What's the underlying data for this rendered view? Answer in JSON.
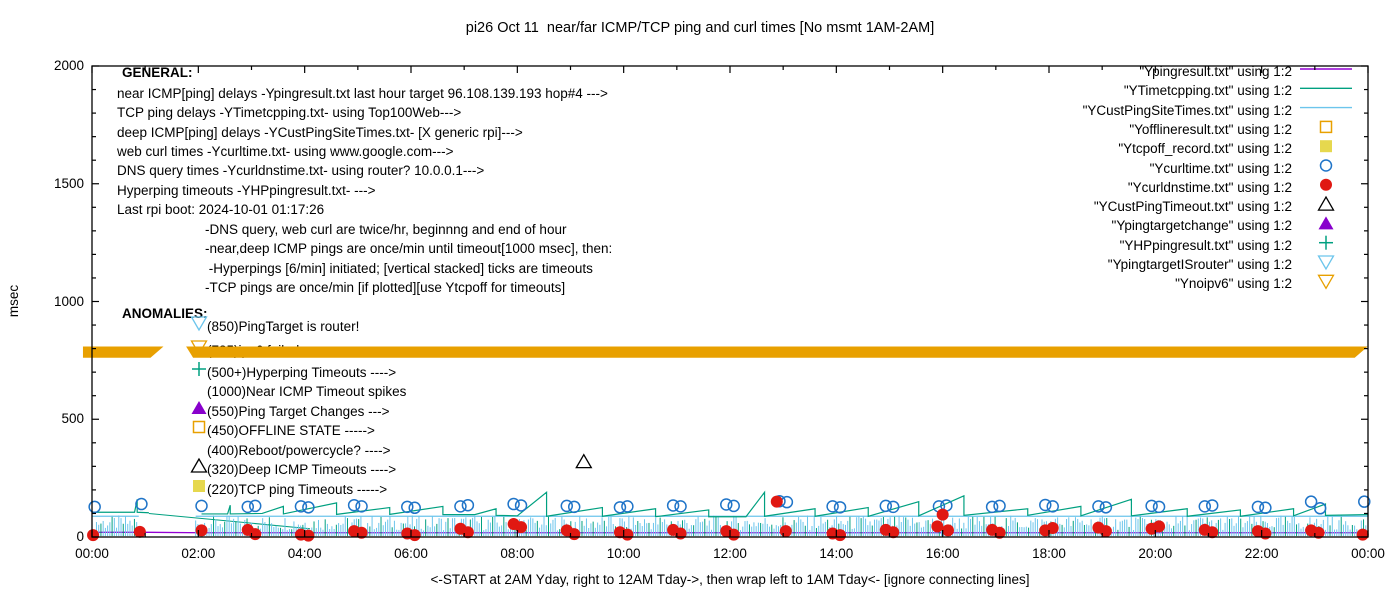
{
  "title": "pi26 Oct 11  near/far ICMP/TCP ping and curl times [No msmt 1AM-2AM]",
  "axes": {
    "ylabel": "msec",
    "xlabel": "<-START at 2AM Yday, right to 12AM Tday->, then wrap left to 1AM Tday<- [ignore connecting lines]",
    "yticks": [
      "0",
      "500",
      "1000",
      "1500",
      "2000"
    ],
    "xticks": [
      "00:00",
      "02:00",
      "04:00",
      "06:00",
      "08:00",
      "10:00",
      "12:00",
      "14:00",
      "16:00",
      "18:00",
      "20:00",
      "22:00",
      "00:00"
    ]
  },
  "general": {
    "heading": "GENERAL:",
    "lines": [
      "near ICMP[ping] delays -Ypingresult.txt last hour target 96.108.139.193 hop#4 --->",
      "TCP ping delays -YTimetcpping.txt- using Top100Web--->",
      "deep ICMP[ping] delays -YCustPingSiteTimes.txt- [X generic rpi]--->",
      "web curl times -Ycurltime.txt- using www.google.com--->",
      "DNS query times -Ycurldnstime.txt- using router? 10.0.0.1--->",
      "Hyperping timeouts -YHPpingresult.txt- --->",
      "Last rpi boot: 2024-10-01 01:17:26"
    ],
    "indented_lines": [
      "-DNS query, web curl are twice/hr, beginnng and end of hour",
      "-near,deep ICMP pings are once/min until timeout[1000 msec], then:",
      " -Hyperpings [6/min] initiated; [vertical stacked] ticks are timeouts",
      "-TCP pings are once/min [if plotted][use Ytcpoff for timeouts]"
    ]
  },
  "anomalies": {
    "heading": "ANOMALIES:",
    "rows": [
      {
        "marker": "triangle-down-open",
        "color": "#6cc5ec",
        "label": "(850)PingTarget is router!"
      },
      {
        "marker": "triangle-down-open",
        "color": "#e8a000",
        "label": "(785)ipv6 failed ->"
      },
      {
        "marker": "plus",
        "color": "#00a080",
        "label": "(500+)Hyperping Timeouts ---->"
      },
      {
        "marker": "none",
        "color": "",
        "label": "(1000)Near ICMP Timeout spikes"
      },
      {
        "marker": "triangle-up-filled",
        "color": "#8800cc",
        "label": "(550)Ping Target Changes --->"
      },
      {
        "marker": "square-open",
        "color": "#e8a000",
        "label": "(450)OFFLINE STATE ----->"
      },
      {
        "marker": "none",
        "color": "",
        "label": "(400)Reboot/powercycle? ---->"
      },
      {
        "marker": "triangle-up-open",
        "color": "#000000",
        "label": "(320)Deep ICMP Timeouts ---->"
      },
      {
        "marker": "square-filled",
        "color": "#e6d84e",
        "label": "(220)TCP ping Timeouts ----->"
      }
    ]
  },
  "legend": [
    {
      "label": "\"Ypingresult.txt\" using 1:2",
      "glyph": "line",
      "color": "#9400d3"
    },
    {
      "label": "\"YTimetcpping.txt\" using 1:2",
      "glyph": "line",
      "color": "#00a080"
    },
    {
      "label": "\"YCustPingSiteTimes.txt\" using 1:2",
      "glyph": "line",
      "color": "#6cc5ec"
    },
    {
      "label": "\"Yofflineresult.txt\" using 1:2",
      "glyph": "square-open",
      "color": "#e8a000"
    },
    {
      "label": "\"Ytcpoff_record.txt\" using 1:2",
      "glyph": "square-filled",
      "color": "#e6d84e"
    },
    {
      "label": "\"Ycurltime.txt\" using 1:2",
      "glyph": "circle-open",
      "color": "#1f74c8"
    },
    {
      "label": "\"Ycurldnstime.txt\" using 1:2",
      "glyph": "circle-filled",
      "color": "#e01812"
    },
    {
      "label": "\"YCustPingTimeout.txt\" using 1:2",
      "glyph": "triangle-up-open",
      "color": "#000000"
    },
    {
      "label": "\"Ypingtargetchange\" using 1:2",
      "glyph": "triangle-up-filled",
      "color": "#8800cc"
    },
    {
      "label": "\"YHPpingresult.txt\" using 1:2",
      "glyph": "plus",
      "color": "#00a080"
    },
    {
      "label": "\"YpingtargetISrouter\" using 1:2",
      "glyph": "triangle-down-open",
      "color": "#6cc5ec"
    },
    {
      "label": "\"Ynoipv6\" using 1:2",
      "glyph": "triangle-down-open",
      "color": "#e8a000"
    }
  ],
  "chart_data": {
    "type": "line",
    "x_unit": "hours (00:00-24:00)",
    "x_range": [
      0,
      24
    ],
    "y_range": [
      0,
      2000
    ],
    "ylabel": "msec",
    "gap_note": "No msmt 1AM-2AM",
    "series": [
      {
        "name": "Ypingresult.txt",
        "style": "line",
        "color": "#9400d3",
        "points": [
          [
            0,
            20
          ],
          [
            1.07,
            20
          ],
          [
            2.06,
            18
          ],
          [
            24,
            18
          ]
        ]
      },
      {
        "name": "YTimetcpping.txt",
        "style": "line",
        "color": "#00a080",
        "points": [
          [
            0,
            105
          ],
          [
            0.8,
            105
          ],
          [
            0.85,
            160
          ],
          [
            0.85,
            105
          ],
          [
            1.07,
            103
          ],
          [
            2.06,
            98
          ],
          [
            2.55,
            98
          ],
          [
            2.6,
            135
          ],
          [
            2.6,
            98
          ],
          [
            3.2,
            100
          ],
          [
            3.6,
            130
          ],
          [
            3.6,
            98
          ],
          [
            4.6,
            145
          ],
          [
            4.6,
            96
          ],
          [
            5.6,
            125
          ],
          [
            5.6,
            96
          ],
          [
            6.6,
            130
          ],
          [
            6.6,
            95
          ],
          [
            7.2,
            95
          ],
          [
            7.6,
            120
          ],
          [
            7.6,
            92
          ],
          [
            8.0,
            90
          ],
          [
            8.55,
            190
          ],
          [
            8.55,
            88
          ],
          [
            9.6,
            125
          ],
          [
            9.6,
            88
          ],
          [
            10.6,
            120
          ],
          [
            10.6,
            86
          ],
          [
            11.6,
            115
          ],
          [
            11.6,
            86
          ],
          [
            12.3,
            86
          ],
          [
            12.65,
            190
          ],
          [
            12.65,
            88
          ],
          [
            13.6,
            120
          ],
          [
            13.6,
            88
          ],
          [
            14.6,
            125
          ],
          [
            14.6,
            88
          ],
          [
            15.55,
            150
          ],
          [
            15.55,
            90
          ],
          [
            16.4,
            175
          ],
          [
            16.4,
            92
          ],
          [
            17.6,
            120
          ],
          [
            17.6,
            92
          ],
          [
            18.6,
            130
          ],
          [
            18.6,
            90
          ],
          [
            19.55,
            160
          ],
          [
            19.55,
            90
          ],
          [
            20.6,
            120
          ],
          [
            20.6,
            88
          ],
          [
            21.6,
            115
          ],
          [
            21.6,
            88
          ],
          [
            22.6,
            120
          ],
          [
            22.6,
            90
          ],
          [
            23.2,
            140
          ],
          [
            23.2,
            92
          ],
          [
            24,
            95
          ]
        ],
        "gap": [
          1.07,
          2.06
        ]
      },
      {
        "name": "gap-connector",
        "style": "line",
        "color": "#00a080",
        "points": [
          [
            1.07,
            100
          ],
          [
            4.1,
            35
          ]
        ]
      },
      {
        "name": "YCustPingSiteTimes.txt",
        "style": "noise-band",
        "color": "#6cc5ec",
        "alt_color": "#00a080",
        "segments": [
          [
            0,
            0.88
          ],
          [
            1.95,
            24
          ]
        ],
        "y_base": 4,
        "y_top_min": 28,
        "y_top_max": 92,
        "cap_line_y": 88
      },
      {
        "name": "Ycurltime.txt",
        "style": "circle-open",
        "color": "#1f74c8",
        "points": [
          [
            0.05,
            128
          ],
          [
            0.93,
            140
          ],
          [
            2.06,
            132
          ],
          [
            2.93,
            128
          ],
          [
            3.07,
            132
          ],
          [
            3.93,
            130
          ],
          [
            4.07,
            126
          ],
          [
            4.93,
            135
          ],
          [
            5.07,
            130
          ],
          [
            5.93,
            128
          ],
          [
            6.07,
            124
          ],
          [
            6.93,
            130
          ],
          [
            7.07,
            135
          ],
          [
            7.93,
            140
          ],
          [
            8.07,
            134
          ],
          [
            8.93,
            132
          ],
          [
            9.07,
            128
          ],
          [
            9.93,
            126
          ],
          [
            10.07,
            130
          ],
          [
            10.93,
            134
          ],
          [
            11.07,
            130
          ],
          [
            11.93,
            138
          ],
          [
            12.07,
            132
          ],
          [
            12.93,
            152
          ],
          [
            13.07,
            148
          ],
          [
            13.93,
            130
          ],
          [
            14.07,
            126
          ],
          [
            14.93,
            132
          ],
          [
            15.07,
            128
          ],
          [
            15.93,
            130
          ],
          [
            16.07,
            134
          ],
          [
            16.93,
            128
          ],
          [
            17.07,
            132
          ],
          [
            17.93,
            136
          ],
          [
            18.07,
            130
          ],
          [
            18.93,
            130
          ],
          [
            19.07,
            126
          ],
          [
            19.93,
            132
          ],
          [
            20.07,
            128
          ],
          [
            20.93,
            130
          ],
          [
            21.07,
            134
          ],
          [
            21.93,
            128
          ],
          [
            22.07,
            124
          ],
          [
            22.93,
            150
          ],
          [
            23.1,
            122
          ],
          [
            23.93,
            150
          ]
        ]
      },
      {
        "name": "Ycurldnstime.txt",
        "style": "circle-filled",
        "color": "#e01812",
        "points": [
          [
            0.02,
            8
          ],
          [
            0.9,
            22
          ],
          [
            2.06,
            28
          ],
          [
            2.93,
            30
          ],
          [
            3.07,
            12
          ],
          [
            3.93,
            10
          ],
          [
            4.07,
            6
          ],
          [
            4.93,
            25
          ],
          [
            5.07,
            18
          ],
          [
            5.93,
            15
          ],
          [
            6.07,
            8
          ],
          [
            6.93,
            35
          ],
          [
            7.07,
            20
          ],
          [
            7.93,
            55
          ],
          [
            8.07,
            42
          ],
          [
            8.93,
            28
          ],
          [
            9.07,
            12
          ],
          [
            9.93,
            20
          ],
          [
            10.07,
            10
          ],
          [
            10.93,
            30
          ],
          [
            11.07,
            15
          ],
          [
            11.93,
            25
          ],
          [
            12.07,
            10
          ],
          [
            12.88,
            150
          ],
          [
            13.05,
            25
          ],
          [
            13.93,
            15
          ],
          [
            14.07,
            8
          ],
          [
            14.93,
            30
          ],
          [
            15.07,
            20
          ],
          [
            15.9,
            45
          ],
          [
            16.0,
            95
          ],
          [
            16.1,
            28
          ],
          [
            16.93,
            30
          ],
          [
            17.07,
            18
          ],
          [
            17.93,
            28
          ],
          [
            18.07,
            38
          ],
          [
            18.93,
            40
          ],
          [
            19.07,
            25
          ],
          [
            19.93,
            35
          ],
          [
            20.07,
            45
          ],
          [
            20.93,
            30
          ],
          [
            21.07,
            20
          ],
          [
            21.93,
            25
          ],
          [
            22.07,
            15
          ],
          [
            22.93,
            28
          ],
          [
            23.07,
            18
          ],
          [
            23.9,
            10
          ]
        ]
      },
      {
        "name": "YCustPingTimeout.txt",
        "style": "triangle-up-open",
        "color": "#000000",
        "points": [
          [
            9.25,
            320
          ]
        ]
      },
      {
        "name": "Ynoipv6",
        "style": "band",
        "color": "#e8a000",
        "y_center": 785,
        "y_half": 24,
        "segments": [
          [
            -0.17,
            1.1
          ],
          [
            1.77,
            23.75
          ]
        ]
      }
    ]
  }
}
